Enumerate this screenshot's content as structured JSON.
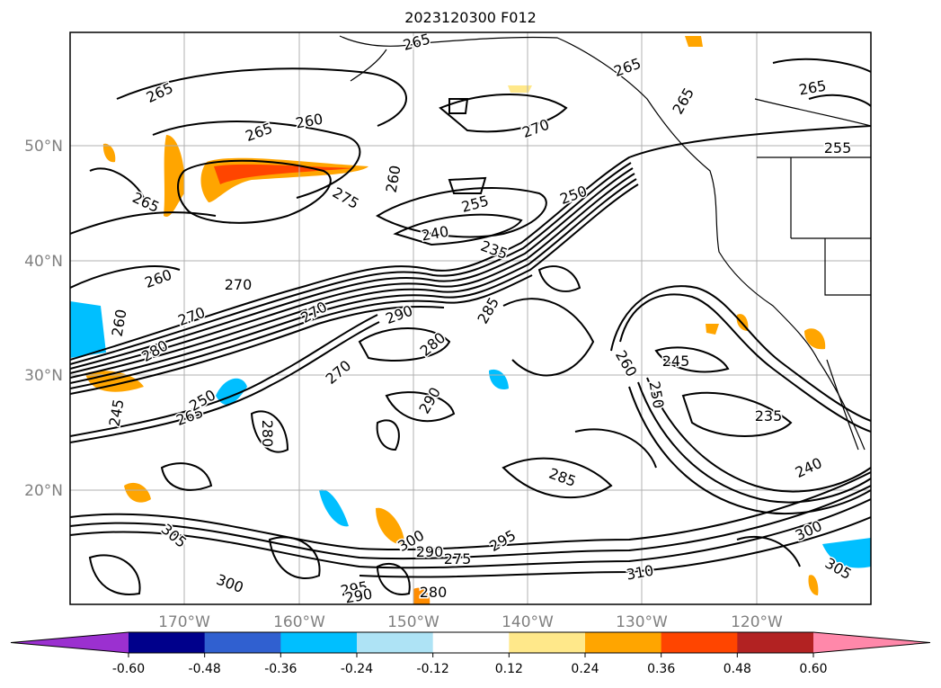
{
  "title": "2023120300 F012",
  "lat_labels": [
    "50°N",
    "40°N",
    "30°N",
    "20°N"
  ],
  "lon_labels": [
    "170°W",
    "160°W",
    "150°W",
    "140°W",
    "130°W",
    "120°W"
  ],
  "colorbar": {
    "ticks": [
      "-0.60",
      "-0.48",
      "-0.36",
      "-0.24",
      "-0.12",
      "0.12",
      "0.24",
      "0.36",
      "0.48",
      "0.60"
    ],
    "colors": [
      "#9b30d0",
      "#00008b",
      "#3060d0",
      "#00bfff",
      "#aee3f5",
      "#ffffff",
      "#ffe88a",
      "#ffa500",
      "#ff4500",
      "#b22222",
      "#ff88aa"
    ]
  },
  "contour_labels": [
    "265",
    "265",
    "265",
    "260",
    "265",
    "270",
    "265",
    "260",
    "255",
    "265",
    "275",
    "265",
    "255",
    "250",
    "240",
    "235",
    "260",
    "270",
    "270",
    "260",
    "270",
    "285",
    "290",
    "280",
    "260",
    "245",
    "250",
    "265",
    "235",
    "280",
    "290",
    "245",
    "250",
    "280",
    "270",
    "300",
    "290",
    "275",
    "285",
    "295",
    "310",
    "240",
    "300",
    "305",
    "295",
    "300",
    "305",
    "290",
    "280"
  ],
  "colors": {
    "contour": "#000000",
    "grid": "#b0b0b0",
    "coast": "#000000"
  }
}
